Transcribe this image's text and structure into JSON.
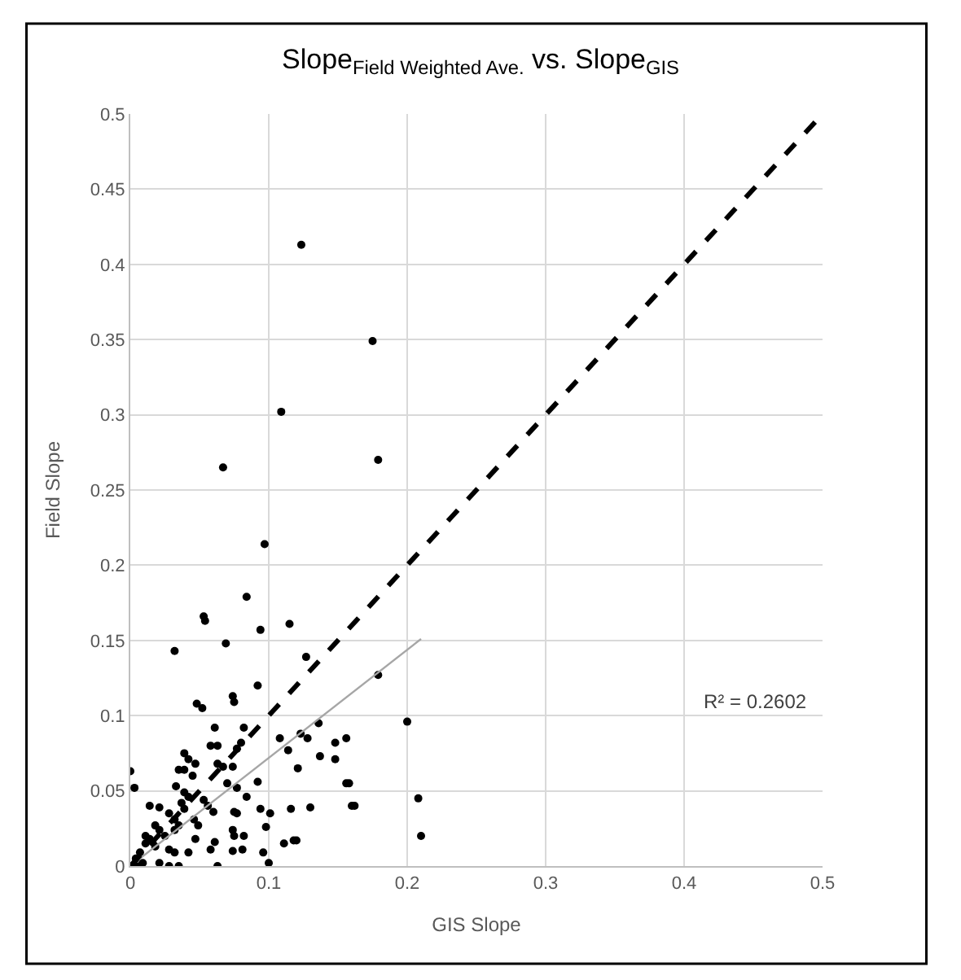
{
  "chart_data": {
    "type": "scatter",
    "title": "Slope$_{Field Weighted Ave.}$ vs. Slope$_{GIS}$",
    "xlabel": "GIS Slope",
    "ylabel": "Field Slope",
    "xlim": [
      0,
      0.5
    ],
    "xticks": [
      0,
      0.1,
      0.2,
      0.3,
      0.4,
      0.5
    ],
    "ylim": [
      0,
      0.5
    ],
    "yticks": [
      0,
      0.05,
      0.1,
      0.15,
      0.2,
      0.25,
      0.3,
      0.35,
      0.4,
      0.45,
      0.5
    ],
    "grid": true,
    "annotations": [
      "R² = 0.2602"
    ],
    "series": [
      {
        "color": "#000000",
        "marker": "circle",
        "x": [
          0.1235,
          0.175,
          0.109,
          0.067,
          0.179,
          0.097,
          0.084,
          0.053,
          0.054,
          0.094,
          0.115,
          0.032,
          0.069,
          0.127,
          0.179,
          0.092,
          0.074,
          0.075,
          0.048,
          0.052,
          0.2,
          0.136,
          0.108,
          0.123,
          0.128,
          0.156,
          0.148,
          0.061,
          0.082,
          0.058,
          0.063,
          0.077,
          0.08,
          0.114,
          0.137,
          0.148,
          0.039,
          0.042,
          0.047,
          0.035,
          0.039,
          0.063,
          0.067,
          0.0,
          0.121,
          0.045,
          0.074,
          0.003,
          0.092,
          0.156,
          0.07,
          0.077,
          0.084,
          0.033,
          0.039,
          0.042,
          0.053,
          0.056,
          0.06,
          0.014,
          0.021,
          0.16,
          0.13,
          0.116,
          0.094,
          0.101,
          0.075,
          0.077,
          0.028,
          0.032,
          0.035,
          0.046,
          0.049,
          0.018,
          0.021,
          0.025,
          0.074,
          0.075,
          0.098,
          0.082,
          0.047,
          0.061,
          0.058,
          0.074,
          0.081,
          0.096,
          0.111,
          0.118,
          0.12,
          0.011,
          0.014,
          0.007,
          0.004,
          0.028,
          0.032,
          0.042,
          0.021,
          0.028,
          0.035,
          0.063,
          0.1,
          0.004,
          0.007,
          0.009,
          0.011,
          0.016,
          0.018,
          0.037,
          0.039,
          0.032,
          0.208,
          0.21,
          0.162,
          0.158
        ],
        "values": [
          0.413,
          0.349,
          0.302,
          0.265,
          0.27,
          0.214,
          0.179,
          0.166,
          0.163,
          0.157,
          0.161,
          0.143,
          0.148,
          0.139,
          0.127,
          0.12,
          0.113,
          0.109,
          0.108,
          0.105,
          0.096,
          0.095,
          0.085,
          0.088,
          0.085,
          0.085,
          0.082,
          0.092,
          0.092,
          0.08,
          0.08,
          0.078,
          0.082,
          0.077,
          0.073,
          0.071,
          0.075,
          0.071,
          0.068,
          0.064,
          0.064,
          0.068,
          0.066,
          0.063,
          0.065,
          0.06,
          0.066,
          0.052,
          0.056,
          0.055,
          0.055,
          0.052,
          0.046,
          0.053,
          0.049,
          0.046,
          0.044,
          0.04,
          0.036,
          0.04,
          0.039,
          0.04,
          0.039,
          0.038,
          0.038,
          0.035,
          0.036,
          0.035,
          0.035,
          0.031,
          0.027,
          0.031,
          0.027,
          0.027,
          0.024,
          0.02,
          0.024,
          0.02,
          0.026,
          0.02,
          0.018,
          0.016,
          0.011,
          0.01,
          0.011,
          0.009,
          0.015,
          0.017,
          0.017,
          0.015,
          0.018,
          0.009,
          0.005,
          0.011,
          0.009,
          0.009,
          0.002,
          0.0,
          0.0,
          0.0,
          0.002,
          0.0,
          0.0,
          0.002,
          0.02,
          0.016,
          0.013,
          0.042,
          0.038,
          0.024,
          0.045,
          0.02,
          0.04,
          0.055
        ]
      },
      {
        "type": "line",
        "color": "#a6a6a6",
        "line_style": "solid",
        "x": [
          0,
          0.21
        ],
        "values": [
          0.0,
          0.151
        ]
      },
      {
        "type": "line",
        "color": "#000000",
        "line_style": "dashed",
        "x": [
          0,
          0.5
        ],
        "values": [
          0,
          0.5
        ]
      }
    ]
  }
}
